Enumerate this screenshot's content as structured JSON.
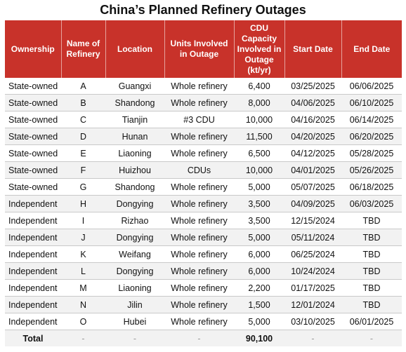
{
  "title": "China’s Planned Refinery Outages",
  "headers": [
    "Ownership",
    "Name of Refinery",
    "Location",
    "Units Involved in Outage",
    "CDU Capacity Involved in Outage (kt/yr)",
    "Start Date",
    "End Date"
  ],
  "rows": [
    [
      "State-owned",
      "A",
      "Guangxi",
      "Whole refinery",
      "6,400",
      "03/25/2025",
      "06/06/2025"
    ],
    [
      "State-owned",
      "B",
      "Shandong",
      "Whole refinery",
      "8,000",
      "04/06/2025",
      "06/10/2025"
    ],
    [
      "State-owned",
      "C",
      "Tianjin",
      "#3 CDU",
      "10,000",
      "04/16/2025",
      "06/14/2025"
    ],
    [
      "State-owned",
      "D",
      "Hunan",
      "Whole refinery",
      "11,500",
      "04/20/2025",
      "06/20/2025"
    ],
    [
      "State-owned",
      "E",
      "Liaoning",
      "Whole refinery",
      "6,500",
      "04/12/2025",
      "05/28/2025"
    ],
    [
      "State-owned",
      "F",
      "Huizhou",
      "CDUs",
      "10,000",
      "04/01/2025",
      "05/26/2025"
    ],
    [
      "State-owned",
      "G",
      "Shandong",
      "Whole refinery",
      "5,000",
      "05/07/2025",
      "06/18/2025"
    ],
    [
      "Independent",
      "H",
      "Dongying",
      "Whole refinery",
      "3,500",
      "04/09/2025",
      "06/03/2025"
    ],
    [
      "Independent",
      "I",
      "Rizhao",
      "Whole refinery",
      "3,500",
      "12/15/2024",
      "TBD"
    ],
    [
      "Independent",
      "J",
      "Dongying",
      "Whole refinery",
      "5,000",
      "05/11/2024",
      "TBD"
    ],
    [
      "Independent",
      "K",
      "Weifang",
      "Whole refinery",
      "6,000",
      "06/25/2024",
      "TBD"
    ],
    [
      "Independent",
      "L",
      "Dongying",
      "Whole refinery",
      "6,000",
      "10/24/2024",
      "TBD"
    ],
    [
      "Independent",
      "M",
      "Liaoning",
      "Whole refinery",
      "2,200",
      "01/17/2025",
      "TBD"
    ],
    [
      "Independent",
      "N",
      "Jilin",
      "Whole refinery",
      "1,500",
      "12/01/2024",
      "TBD"
    ],
    [
      "Independent",
      "O",
      "Hubei",
      "Whole refinery",
      "5,000",
      "03/10/2025",
      "06/01/2025"
    ]
  ],
  "total": [
    "Total",
    "-",
    "-",
    "-",
    "90,100",
    "-",
    "-"
  ],
  "colors": {
    "header_bg": "#c8322a",
    "header_text": "#ffffff",
    "row_alt": "#f2f2f2"
  }
}
